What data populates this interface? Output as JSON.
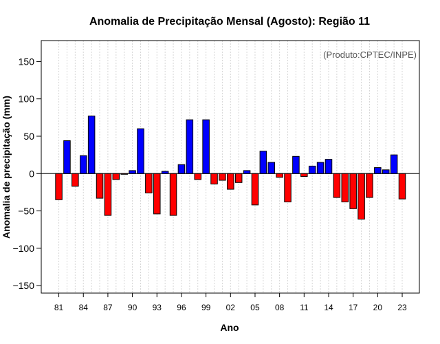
{
  "chart_data": {
    "type": "bar",
    "title": "Anomalia de Precipitação Mensal (Agosto): Região 11",
    "xlabel": "Ano",
    "ylabel": "Anomalia de precipitação (mm)",
    "annotation": "(Produto:CPTEC/INPE)",
    "ylim": [
      -160,
      178
    ],
    "yticks": [
      -150,
      -100,
      -50,
      0,
      50,
      100,
      150
    ],
    "xtick_labels": [
      "81",
      "84",
      "87",
      "90",
      "93",
      "96",
      "99",
      "02",
      "05",
      "08",
      "11",
      "14",
      "17",
      "20",
      "23"
    ],
    "xtick_every": 3,
    "grid": true,
    "positive_color": "#0000ff",
    "negative_color": "#ff0000",
    "categories": [
      "1981",
      "1982",
      "1983",
      "1984",
      "1985",
      "1986",
      "1987",
      "1988",
      "1989",
      "1990",
      "1991",
      "1992",
      "1993",
      "1994",
      "1995",
      "1996",
      "1997",
      "1998",
      "1999",
      "2000",
      "2001",
      "2002",
      "2003",
      "2004",
      "2005",
      "2006",
      "2007",
      "2008",
      "2009",
      "2010",
      "2011",
      "2012",
      "2013",
      "2014",
      "2015",
      "2016",
      "2017",
      "2018",
      "2019",
      "2020",
      "2021",
      "2022",
      "2023"
    ],
    "values": [
      -35,
      44,
      -17,
      24,
      77,
      -33,
      -56,
      -8,
      -1,
      4,
      60,
      -26,
      -54,
      3,
      -56,
      12,
      72,
      -8,
      72,
      -14,
      -9,
      -21,
      -12,
      4,
      -42,
      30,
      15,
      -5,
      -38,
      23,
      -4,
      10,
      15,
      19,
      -32,
      -38,
      -47,
      -61,
      -32,
      8,
      5,
      25,
      -34
    ]
  }
}
